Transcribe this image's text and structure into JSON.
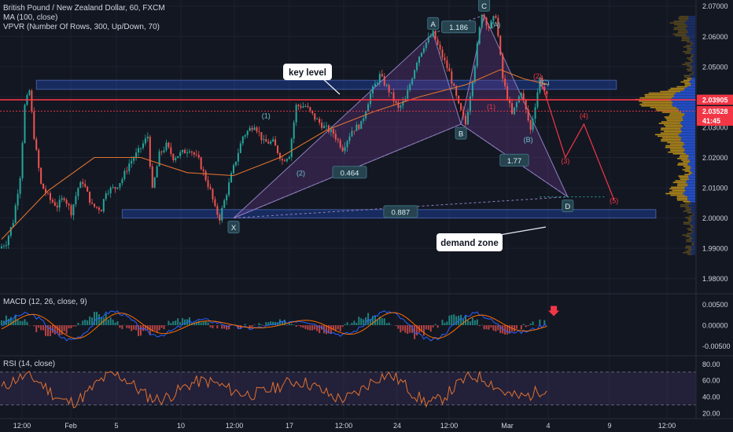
{
  "theme": {
    "background": "#131722",
    "grid": "#1e2230",
    "separator": "#2a2e39",
    "axis_text": "#d1d4dc",
    "up": "#26a69a",
    "down": "#ef5350",
    "ma": "#e0722f",
    "pattern_fill": "#7b3fa0",
    "zone_fill": "#2962ff",
    "vp_up": "#d4a017",
    "vp_down": "#2962ff",
    "key_line": "#f23645",
    "label_box": "#26434f"
  },
  "header": {
    "title": "British Pound / New Zealand Dollar, 60, FXCM",
    "ma_legend": "MA (100, close)",
    "vpvr_legend": "VPVR (Number Of Rows, 300, Up/Down, 70)",
    "macd_legend": "MACD (12, 26, close, 9)",
    "rsi_legend": "RSI (14, close)"
  },
  "annotations": {
    "key_level": "key level",
    "demand_zone": "demand zone"
  },
  "chart_data": [
    {
      "type": "candlestick",
      "title": "British Pound / New Zealand Dollar, 60, FXCM",
      "ylim": [
        1.975,
        2.072
      ],
      "y_ticks": [
        "2.07000",
        "2.06000",
        "2.05000",
        "2.04000",
        "2.03000",
        "2.02000",
        "2.01000",
        "2.00000",
        "1.99000",
        "1.98000"
      ],
      "x_ticks": [
        "12:00",
        "Feb",
        "5",
        "10",
        "12:00",
        "17",
        "12:00",
        "24",
        "12:00",
        "Mar",
        "4",
        "9",
        "12:00"
      ],
      "price_path": [
        {
          "t": 0,
          "y": 1.99
        },
        {
          "t": 3,
          "y": 1.992
        },
        {
          "t": 6,
          "y": 1.999
        },
        {
          "t": 9,
          "y": 2.014
        },
        {
          "t": 11,
          "y": 2.037
        },
        {
          "t": 13,
          "y": 2.042
        },
        {
          "t": 15,
          "y": 2.027
        },
        {
          "t": 18,
          "y": 2.011
        },
        {
          "t": 22,
          "y": 2.006
        },
        {
          "t": 25,
          "y": 2.004
        },
        {
          "t": 28,
          "y": 2.007
        },
        {
          "t": 31,
          "y": 2.002
        },
        {
          "t": 34,
          "y": 2.01
        },
        {
          "t": 36,
          "y": 2.012
        },
        {
          "t": 40,
          "y": 2.004
        },
        {
          "t": 44,
          "y": 2.003
        },
        {
          "t": 46,
          "y": 2.009
        },
        {
          "t": 50,
          "y": 2.01
        },
        {
          "t": 53,
          "y": 2.013
        },
        {
          "t": 56,
          "y": 2.018
        },
        {
          "t": 60,
          "y": 2.022
        },
        {
          "t": 64,
          "y": 2.027
        },
        {
          "t": 66,
          "y": 2.009
        },
        {
          "t": 69,
          "y": 2.021
        },
        {
          "t": 72,
          "y": 2.024
        },
        {
          "t": 75,
          "y": 2.02
        },
        {
          "t": 80,
          "y": 2.022
        },
        {
          "t": 82,
          "y": 2.023
        },
        {
          "t": 86,
          "y": 2.019
        },
        {
          "t": 91,
          "y": 2.009
        },
        {
          "t": 93,
          "y": 2.003
        },
        {
          "t": 95,
          "y": 2.0
        },
        {
          "t": 100,
          "y": 2.014
        },
        {
          "t": 105,
          "y": 2.027
        },
        {
          "t": 110,
          "y": 2.031
        },
        {
          "t": 114,
          "y": 2.025
        },
        {
          "t": 118,
          "y": 2.025
        },
        {
          "t": 122,
          "y": 2.019
        },
        {
          "t": 125,
          "y": 2.021
        },
        {
          "t": 128,
          "y": 2.037
        },
        {
          "t": 132,
          "y": 2.037
        },
        {
          "t": 136,
          "y": 2.033
        },
        {
          "t": 140,
          "y": 2.03
        },
        {
          "t": 144,
          "y": 2.028
        },
        {
          "t": 148,
          "y": 2.023
        },
        {
          "t": 152,
          "y": 2.029
        },
        {
          "t": 156,
          "y": 2.031
        },
        {
          "t": 160,
          "y": 2.041
        },
        {
          "t": 164,
          "y": 2.047
        },
        {
          "t": 168,
          "y": 2.042
        },
        {
          "t": 172,
          "y": 2.036
        },
        {
          "t": 175,
          "y": 2.039
        },
        {
          "t": 180,
          "y": 2.052
        },
        {
          "t": 183,
          "y": 2.057
        },
        {
          "t": 187,
          "y": 2.061
        },
        {
          "t": 190,
          "y": 2.055
        },
        {
          "t": 194,
          "y": 2.048
        },
        {
          "t": 198,
          "y": 2.037
        },
        {
          "t": 201,
          "y": 2.031
        },
        {
          "t": 205,
          "y": 2.051
        },
        {
          "t": 208,
          "y": 2.068
        },
        {
          "t": 211,
          "y": 2.063
        },
        {
          "t": 214,
          "y": 2.067
        },
        {
          "t": 217,
          "y": 2.046
        },
        {
          "t": 221,
          "y": 2.034
        },
        {
          "t": 225,
          "y": 2.042
        },
        {
          "t": 229,
          "y": 2.029
        },
        {
          "t": 233,
          "y": 2.046
        },
        {
          "t": 236,
          "y": 2.04
        }
      ],
      "series": [
        {
          "name": "MA (100, close)",
          "points": [
            {
              "t": 0,
              "y": 1.993
            },
            {
              "t": 20,
              "y": 2.009
            },
            {
              "t": 40,
              "y": 2.02
            },
            {
              "t": 60,
              "y": 2.02
            },
            {
              "t": 80,
              "y": 2.015
            },
            {
              "t": 100,
              "y": 2.014
            },
            {
              "t": 120,
              "y": 2.02
            },
            {
              "t": 140,
              "y": 2.029
            },
            {
              "t": 160,
              "y": 2.035
            },
            {
              "t": 180,
              "y": 2.04
            },
            {
              "t": 200,
              "y": 2.044
            },
            {
              "t": 215,
              "y": 2.049
            },
            {
              "t": 225,
              "y": 2.046
            },
            {
              "t": 236,
              "y": 2.044
            }
          ]
        }
      ],
      "harmonic_points": [
        {
          "label": "X",
          "t": 100,
          "y": 2.0
        },
        {
          "label": "A",
          "t": 186,
          "y": 2.061
        },
        {
          "label": "B",
          "t": 198,
          "y": 2.031
        },
        {
          "label": "C",
          "t": 208,
          "y": 2.067
        },
        {
          "label": "D",
          "t": 244,
          "y": 2.007
        }
      ],
      "harmonic_ratios": [
        {
          "label": "0.464",
          "t": 150,
          "y": 2.015
        },
        {
          "label": "1.186",
          "t": 197,
          "y": 2.063
        },
        {
          "label": "1.77",
          "t": 221,
          "y": 2.019
        },
        {
          "label": "0.887",
          "t": 172,
          "y": 2.002
        }
      ],
      "waves": [
        {
          "label": "(1)",
          "t": 114,
          "y": 2.033
        },
        {
          "label": "(2)",
          "t": 129,
          "y": 2.014
        },
        {
          "label": "(A)",
          "t": 213,
          "y": 2.063
        },
        {
          "label": "(B)",
          "t": 227,
          "y": 2.025
        },
        {
          "label": "(C)",
          "t": 234,
          "y": 2.044
        }
      ],
      "projection_labels": [
        {
          "label": "(1)",
          "t": 211,
          "y": 2.036
        },
        {
          "label": "(2)",
          "t": 231,
          "y": 2.046
        },
        {
          "label": "(3)",
          "t": 243,
          "y": 2.018
        },
        {
          "label": "(4)",
          "t": 251,
          "y": 2.033
        },
        {
          "label": "(5)",
          "t": 264,
          "y": 2.005
        }
      ],
      "projection_path": [
        {
          "t": 233,
          "y": 2.044
        },
        {
          "t": 243,
          "y": 2.02
        },
        {
          "t": 251,
          "y": 2.031
        },
        {
          "t": 264,
          "y": 2.006
        }
      ],
      "zones": [
        {
          "name": "key level",
          "t0": 15,
          "t1": 265,
          "y_top": 2.0455,
          "y_bottom": 2.0425
        },
        {
          "name": "demand zone",
          "t0": 52,
          "t1": 282,
          "y_top": 2.0028,
          "y_bottom": 2.0
        }
      ],
      "key_line_price": 2.03905,
      "current_price": 2.03528,
      "price_labels": [
        {
          "value": "2.03905",
          "color": "#f23645"
        },
        {
          "value": "2.03528",
          "color": "#f23645"
        },
        {
          "value": "41:45",
          "color": "#f23645"
        }
      ],
      "volume_profile": {
        "poc_price": 2.039,
        "value_area": [
          2.005,
          2.046
        ]
      }
    },
    {
      "type": "histogram",
      "title": "MACD (12, 26, close, 9)",
      "ylim": [
        -0.007,
        0.0072
      ],
      "y_ticks": [
        "0.00500",
        "0.00000",
        "-0.00500"
      ],
      "signal_marker": "sell arrow"
    },
    {
      "type": "line",
      "title": "RSI (14, close)",
      "ylim": [
        15,
        88
      ],
      "y_ticks": [
        "80.00",
        "60.00",
        "40.00",
        "20.00"
      ],
      "bands": [
        70,
        30
      ]
    }
  ]
}
